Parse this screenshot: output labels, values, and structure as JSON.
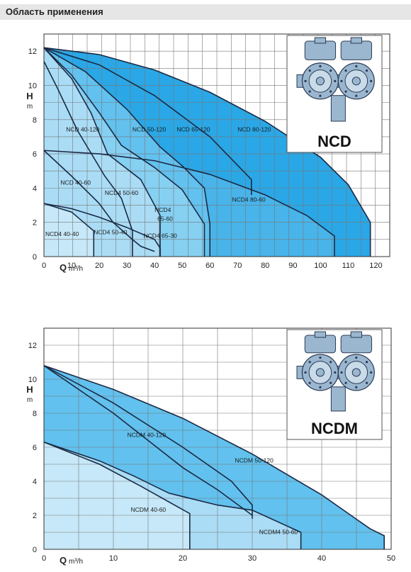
{
  "header": {
    "title": "Область применения"
  },
  "colors": {
    "header_bg": "#e6e6e6",
    "grid": "#777777",
    "outline": "#1a2a44",
    "fills": [
      "#2aa7e6",
      "#48b4ea",
      "#62c1ee",
      "#86d0f2",
      "#aadcf5",
      "#c6e8f8"
    ]
  },
  "chart_data": [
    {
      "type": "area",
      "title": "NCD",
      "xlabel": "Q",
      "xunit": "m³/h",
      "ylabel": "H",
      "yunit": "m",
      "xlim": [
        0,
        125
      ],
      "ylim": [
        0,
        13
      ],
      "x_ticks": [
        0,
        10,
        20,
        30,
        40,
        50,
        60,
        70,
        80,
        90,
        100,
        110,
        120
      ],
      "y_ticks": [
        0,
        2,
        4,
        6,
        8,
        10,
        12
      ],
      "grid": true,
      "picture": "twin-pump-illustration",
      "curves": [
        {
          "points": [
            [
              0,
              12.2
            ],
            [
              20,
              11.8
            ],
            [
              40,
              10.9
            ],
            [
              60,
              9.6
            ],
            [
              80,
              7.9
            ],
            [
              100,
              5.8
            ],
            [
              110,
              4.2
            ],
            [
              118,
              2.0
            ],
            [
              118,
              0
            ]
          ],
          "fill_index": 0
        },
        {
          "points": [
            [
              0,
              6.2
            ],
            [
              20,
              6.0
            ],
            [
              40,
              5.6
            ],
            [
              60,
              4.8
            ],
            [
              80,
              3.6
            ],
            [
              95,
              2.4
            ],
            [
              105,
              1.2
            ],
            [
              105,
              0
            ]
          ],
          "fill_index": 1
        },
        {
          "points": [
            [
              0,
              12.2
            ],
            [
              20,
              11.2
            ],
            [
              40,
              9.4
            ],
            [
              60,
              7.0
            ],
            [
              75,
              4.5
            ],
            [
              75,
              3.6
            ]
          ],
          "fill_index": null
        },
        {
          "points": [
            [
              0,
              12.2
            ],
            [
              15,
              10.8
            ],
            [
              30,
              8.6
            ],
            [
              42,
              6.4
            ],
            [
              50,
              5.3
            ],
            [
              58,
              4.0
            ],
            [
              60,
              1.9
            ],
            [
              60,
              0
            ]
          ],
          "fill_index": 2
        },
        {
          "points": [
            [
              0,
              12.2
            ],
            [
              10,
              10.6
            ],
            [
              20,
              8.4
            ],
            [
              28,
              6.5
            ],
            [
              40,
              5.2
            ],
            [
              50,
              3.9
            ],
            [
              58,
              1.9
            ],
            [
              58,
              0
            ]
          ],
          "fill_index": 3
        },
        {
          "points": [
            [
              0,
              12.2
            ],
            [
              10,
              10.4
            ],
            [
              17,
              8.4
            ],
            [
              23,
              6.0
            ],
            [
              35,
              4.5
            ],
            [
              42,
              2.4
            ],
            [
              42,
              0
            ]
          ],
          "fill_index": 4
        },
        {
          "points": [
            [
              0,
              11.4
            ],
            [
              5,
              9.8
            ],
            [
              12,
              7.4
            ],
            [
              22,
              4.7
            ],
            [
              28,
              3.4
            ],
            [
              32,
              1.5
            ],
            [
              32,
              0
            ]
          ],
          "fill_index": null
        },
        {
          "points": [
            [
              0,
              6.2
            ],
            [
              10,
              4.7
            ],
            [
              20,
              3.1
            ],
            [
              25,
              2.0
            ],
            [
              32,
              1.0
            ],
            [
              35,
              0.6
            ],
            [
              40,
              0.3
            ]
          ],
          "fill_index": null
        },
        {
          "points": [
            [
              0,
              3.1
            ],
            [
              10,
              2.8
            ],
            [
              20,
              2.3
            ],
            [
              30,
              1.7
            ],
            [
              40,
              1.0
            ],
            [
              42,
              0.5
            ],
            [
              42,
              0
            ]
          ],
          "fill_index": 4
        },
        {
          "points": [
            [
              0,
              3.1
            ],
            [
              10,
              2.6
            ],
            [
              18,
              1.5
            ],
            [
              18,
              0
            ]
          ],
          "fill_index": 5
        }
      ],
      "curve_labels": [
        {
          "text": "NCD 40-120",
          "x": 8,
          "y": 7.3
        },
        {
          "text": "NCD 50-120",
          "x": 32,
          "y": 7.3
        },
        {
          "text": "NCD 65-120",
          "x": 48,
          "y": 7.3
        },
        {
          "text": "NCD 80-120",
          "x": 70,
          "y": 7.3
        },
        {
          "text": "NCD 40-60",
          "x": 6,
          "y": 4.2
        },
        {
          "text": "NCD4 50-60",
          "x": 22,
          "y": 3.6
        },
        {
          "text": "NCD4 80-60",
          "x": 68,
          "y": 3.2
        },
        {
          "text": "NCD4",
          "x": 40,
          "y": 2.6
        },
        {
          "text": "65-60",
          "x": 41,
          "y": 2.1
        },
        {
          "text": "NCD4 40-40",
          "x": 0.5,
          "y": 1.2
        },
        {
          "text": "NCD4 50-40",
          "x": 18,
          "y": 1.3
        },
        {
          "text": "NCD4 65-30",
          "x": 36,
          "y": 1.1
        }
      ]
    },
    {
      "type": "area",
      "title": "NCDM",
      "xlabel": "Q",
      "xunit": "m³/h",
      "ylabel": "H",
      "yunit": "m",
      "xlim": [
        0,
        50
      ],
      "ylim": [
        0,
        13
      ],
      "x_ticks": [
        0,
        10,
        20,
        30,
        40,
        50
      ],
      "y_ticks": [
        0,
        2,
        4,
        6,
        8,
        10,
        12
      ],
      "grid": true,
      "picture": "twin-pump-illustration",
      "curves": [
        {
          "points": [
            [
              0,
              10.8
            ],
            [
              10,
              9.4
            ],
            [
              20,
              7.7
            ],
            [
              30,
              5.6
            ],
            [
              40,
              3.2
            ],
            [
              47,
              1.2
            ],
            [
              49,
              0.8
            ],
            [
              49,
              0
            ]
          ],
          "fill_index": 2
        },
        {
          "points": [
            [
              0,
              10.8
            ],
            [
              10,
              8.6
            ],
            [
              20,
              6.0
            ],
            [
              27,
              4.0
            ],
            [
              30,
              2.6
            ],
            [
              30,
              1.8
            ]
          ],
          "fill_index": null
        },
        {
          "points": [
            [
              0,
              6.3
            ],
            [
              8,
              5.2
            ],
            [
              13,
              4.3
            ],
            [
              18,
              3.3
            ],
            [
              25,
              2.6
            ],
            [
              30,
              2.3
            ],
            [
              37,
              1.0
            ],
            [
              37,
              0
            ]
          ],
          "fill_index": 4
        },
        {
          "points": [
            [
              0,
              10.8
            ],
            [
              10,
              8.0
            ],
            [
              20,
              4.8
            ],
            [
              25,
              3.5
            ],
            [
              30,
              2.0
            ]
          ],
          "fill_index": null
        },
        {
          "points": [
            [
              0,
              6.3
            ],
            [
              8,
              5.0
            ],
            [
              14,
              3.7
            ],
            [
              21,
              2.1
            ],
            [
              21,
              0
            ]
          ],
          "fill_index": 5
        }
      ],
      "curve_labels": [
        {
          "text": "NCDM 40-120",
          "x": 12,
          "y": 6.6
        },
        {
          "text": "NCDM 50-120",
          "x": 27.5,
          "y": 5.1
        },
        {
          "text": "NCDM 40-60",
          "x": 12.5,
          "y": 2.2
        },
        {
          "text": "NCDM4 50-60",
          "x": 31,
          "y": 0.9
        }
      ]
    }
  ]
}
